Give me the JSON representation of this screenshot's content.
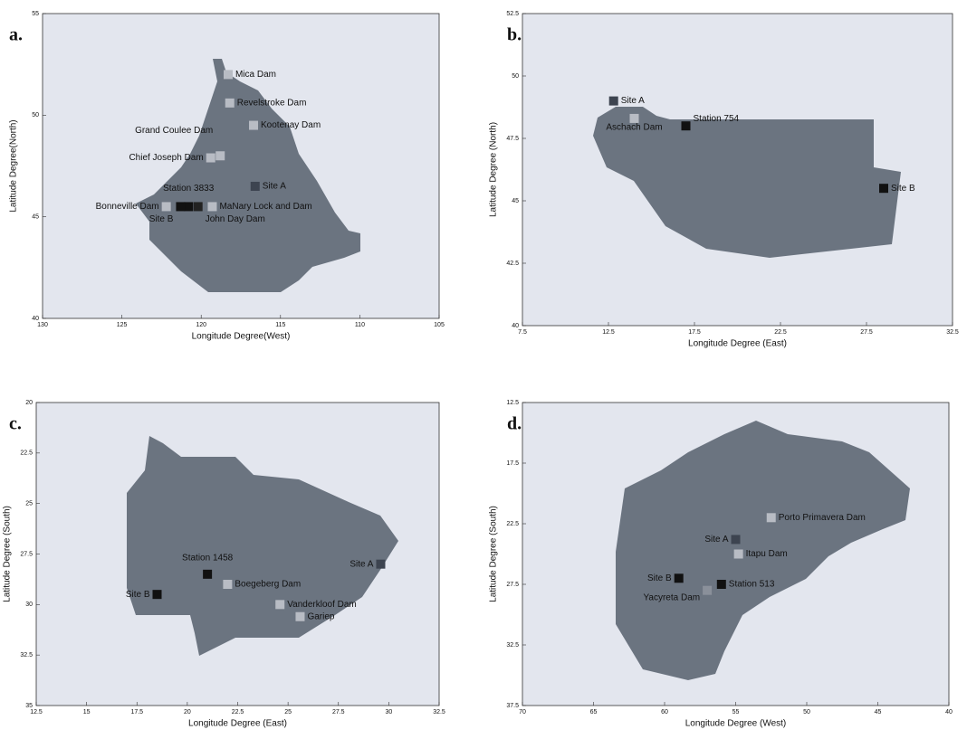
{
  "chart_data": [
    {
      "type": "scatter",
      "panel_label": "a.",
      "x_label": "Longitude Degree(West)",
      "y_label": "Latitude Degree(North)",
      "xlim": [
        130,
        105
      ],
      "xticks": [
        130,
        125,
        120,
        115,
        110,
        105
      ],
      "ylim": [
        40,
        55
      ],
      "yticks": [
        40,
        45,
        50,
        55
      ],
      "point_labels": [
        "Mica Dam",
        "Revelstroke Dam",
        "Kootenay Dam",
        "Grand Coulee Dam",
        "Chief Joseph Dam",
        "Site A",
        "Station 3833",
        "Bonneville Dam",
        "MaNary Lock and Dam",
        "Site B",
        "John Day Dam"
      ],
      "x": [
        118.3,
        118.2,
        116.7,
        118.8,
        119.4,
        116.6,
        120.8,
        122.2,
        119.3,
        121.3,
        120.2
      ],
      "values": [
        52,
        50.6,
        49.5,
        48,
        47.9,
        46.5,
        45.5,
        45.5,
        45.5,
        45.5,
        45.5
      ],
      "point_colors": [
        "#b8bcc4",
        "#b8bcc4",
        "#b8bcc4",
        "#b8bcc4",
        "#b8bcc4",
        "#3d4450",
        "#111111",
        "#b8bcc4",
        "#b8bcc4",
        "#111111",
        "#222222"
      ]
    },
    {
      "type": "scatter",
      "panel_label": "b.",
      "x_label": "Longitude Degree (East)",
      "y_label": "Latitude Degree (North)",
      "xlim": [
        7.5,
        32.5
      ],
      "xticks": [
        7.5,
        12.5,
        17.5,
        22.5,
        27.5,
        32.5
      ],
      "ylim": [
        40,
        52.5
      ],
      "yticks": [
        40,
        42.5,
        45,
        47.5,
        50,
        52.5
      ],
      "point_labels": [
        "Site A",
        "Aschach Dam",
        "Station 754",
        "Site B"
      ],
      "x": [
        12.8,
        14,
        17,
        28.5
      ],
      "values": [
        49,
        48.3,
        48,
        45.5
      ],
      "point_colors": [
        "#3d4450",
        "#b8bcc4",
        "#111111",
        "#111111"
      ]
    },
    {
      "type": "scatter",
      "panel_label": "c.",
      "x_label": "Longitude Degree (East)",
      "y_label": "Latitude Degree (South)",
      "xlim": [
        12.5,
        32.5
      ],
      "xticks": [
        12.5,
        15,
        17.5,
        20,
        22.5,
        25,
        27.5,
        30,
        32.5
      ],
      "ylim": [
        35,
        20
      ],
      "yticks": [
        20,
        22.5,
        25,
        27.5,
        30,
        32.5,
        35
      ],
      "point_labels": [
        "Site A",
        "Station 1458",
        "Boegeberg Dam",
        "Site B",
        "Vanderkloof Dam",
        "Gariep"
      ],
      "x": [
        29.6,
        21,
        22,
        18.5,
        24.6,
        25.6
      ],
      "values": [
        28,
        28.5,
        29,
        29.5,
        30,
        30.6
      ],
      "point_colors": [
        "#3d4450",
        "#111111",
        "#b8bcc4",
        "#111111",
        "#b8bcc4",
        "#b8bcc4"
      ]
    },
    {
      "type": "scatter",
      "panel_label": "d.",
      "x_label": "Longitude Degree (West)",
      "y_label": "Latitude Degree (South)",
      "xlim": [
        70,
        40
      ],
      "xticks": [
        70,
        65,
        60,
        55,
        50,
        45,
        40
      ],
      "ylim": [
        37.5,
        12.5
      ],
      "yticks": [
        12.5,
        17.5,
        22.5,
        27.5,
        32.5,
        37.5
      ],
      "point_labels": [
        "Porto Primavera Dam",
        "Site A",
        "Itapu Dam",
        "Site B",
        "Station 513",
        "Yacyreta Dam"
      ],
      "x": [
        52.5,
        55,
        54.8,
        59,
        56,
        57
      ],
      "values": [
        22,
        23.8,
        25,
        27,
        27.5,
        28
      ],
      "point_colors": [
        "#b8bcc4",
        "#3d4450",
        "#b8bcc4",
        "#111111",
        "#111111",
        "#8a909a"
      ]
    }
  ]
}
